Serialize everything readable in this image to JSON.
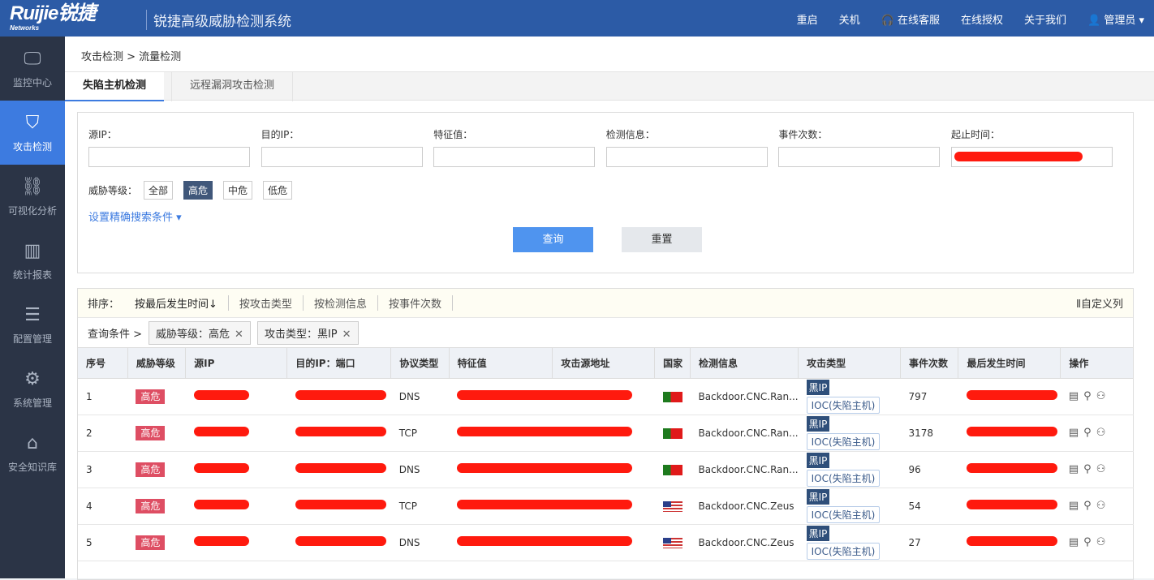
{
  "header": {
    "logo": "Ruijie锐捷",
    "logo_sub": "Networks",
    "system_title": "锐捷高级威胁检测系统",
    "nav": [
      "重启",
      "关机",
      "在线客服",
      "在线授权",
      "关于我们",
      "管理员"
    ]
  },
  "sidebar": {
    "items": [
      {
        "label": "监控中心",
        "icon": "monitor-icon"
      },
      {
        "label": "攻击检测",
        "icon": "shield-icon",
        "active": true
      },
      {
        "label": "可视化分析",
        "icon": "network-icon"
      },
      {
        "label": "统计报表",
        "icon": "bar-chart-icon"
      },
      {
        "label": "配置管理",
        "icon": "sliders-icon"
      },
      {
        "label": "系统管理",
        "icon": "gear-icon"
      },
      {
        "label": "安全知识库",
        "icon": "knowledge-icon"
      }
    ]
  },
  "breadcrumb": "攻击检测 > 流量检测",
  "tabs": [
    "失陷主机检测",
    "远程漏洞攻击检测"
  ],
  "filter": {
    "fields": [
      "源IP：",
      "目的IP：",
      "特征值：",
      "检测信息：",
      "事件次数：",
      "起止时间："
    ],
    "level_label": "威胁等级：",
    "levels": [
      "全部",
      "高危",
      "中危",
      "低危"
    ],
    "advanced": "设置精确搜索条件",
    "query": "查询",
    "reset": "重置"
  },
  "sort": {
    "label": "排序：",
    "options": [
      "按最后发生时间↓",
      "按攻击类型",
      "按检测信息",
      "按事件次数"
    ],
    "custom": "自定义列"
  },
  "conditions": {
    "label": "查询条件 >",
    "chips": [
      "威胁等级：高危",
      "攻击类型：黑IP"
    ]
  },
  "table": {
    "columns": [
      "序号",
      "威胁等级",
      "源IP",
      "目的IP：端口",
      "协议类型",
      "特征值",
      "攻击源地址",
      "国家",
      "检测信息",
      "攻击类型",
      "事件次数",
      "最后发生时间",
      "操作"
    ],
    "rows": [
      {
        "no": "1",
        "level": "高危",
        "proto": "DNS",
        "country": "pt",
        "info": "Backdoor.CNC.Ran...",
        "type1": "黑IP",
        "type2": "IOC(失陷主机)",
        "count": "797"
      },
      {
        "no": "2",
        "level": "高危",
        "proto": "TCP",
        "country": "pt",
        "info": "Backdoor.CNC.Ran...",
        "type1": "黑IP",
        "type2": "IOC(失陷主机)",
        "count": "3178"
      },
      {
        "no": "3",
        "level": "高危",
        "proto": "DNS",
        "country": "pt",
        "info": "Backdoor.CNC.Ran...",
        "type1": "黑IP",
        "type2": "IOC(失陷主机)",
        "count": "96"
      },
      {
        "no": "4",
        "level": "高危",
        "proto": "TCP",
        "country": "us",
        "info": "Backdoor.CNC.Zeus",
        "type1": "黑IP",
        "type2": "IOC(失陷主机)",
        "count": "54"
      },
      {
        "no": "5",
        "level": "高危",
        "proto": "DNS",
        "country": "us",
        "info": "Backdoor.CNC.Zeus",
        "type1": "黑IP",
        "type2": "IOC(失陷主机)",
        "count": "27"
      }
    ]
  }
}
